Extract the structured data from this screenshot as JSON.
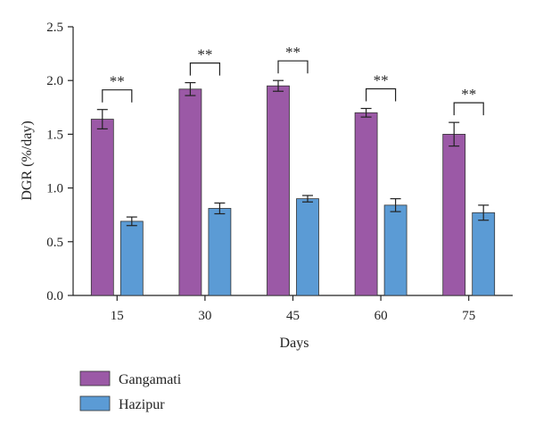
{
  "chart_data": {
    "type": "bar",
    "xlabel": "Days",
    "ylabel": "DGR (%/day)",
    "ylim": [
      0,
      2.5
    ],
    "yticks": [
      "0.0",
      "0.5",
      "1.0",
      "1.5",
      "2.0",
      "2.5"
    ],
    "categories": [
      "15",
      "30",
      "45",
      "60",
      "75"
    ],
    "grid": false,
    "legend_position": "bottom-left",
    "series": [
      {
        "name": "Gangamati",
        "color": "#9B59A6",
        "values": [
          1.64,
          1.92,
          1.95,
          1.7,
          1.5
        ],
        "errors": [
          0.09,
          0.06,
          0.05,
          0.04,
          0.11
        ]
      },
      {
        "name": "Hazipur",
        "color": "#5B9BD5",
        "values": [
          0.69,
          0.81,
          0.9,
          0.84,
          0.77
        ],
        "errors": [
          0.04,
          0.05,
          0.03,
          0.06,
          0.07
        ]
      }
    ],
    "significance": [
      "**",
      "**",
      "**",
      "**",
      "**"
    ]
  }
}
